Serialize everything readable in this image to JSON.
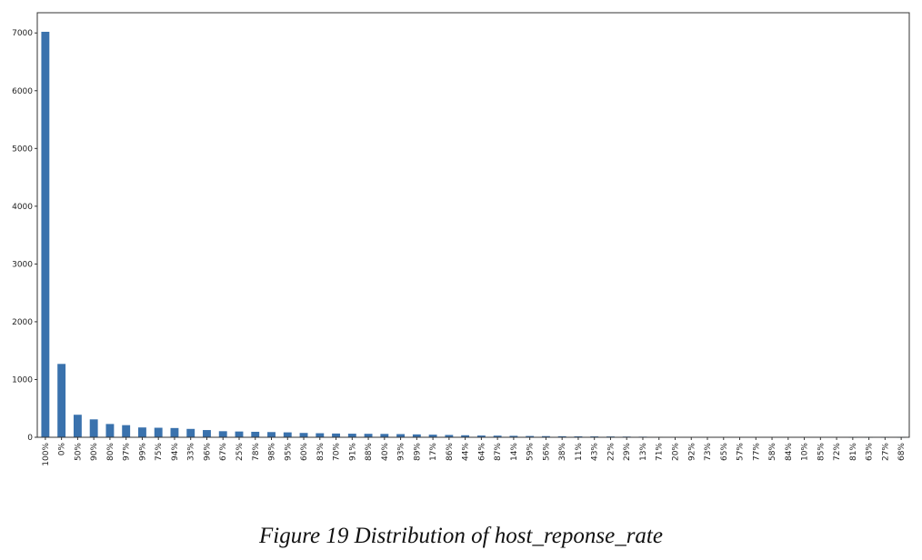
{
  "caption": "Figure 19 Distribution of host_reponse_rate",
  "chart_data": {
    "type": "bar",
    "title": "",
    "xlabel": "",
    "ylabel": "",
    "ylim": [
      0,
      7350
    ],
    "yticks": [
      0,
      1000,
      2000,
      3000,
      4000,
      5000,
      6000,
      7000
    ],
    "grid": false,
    "bar_color": "#3a72ad",
    "categories": [
      "100%",
      "0%",
      "50%",
      "90%",
      "80%",
      "97%",
      "99%",
      "75%",
      "94%",
      "33%",
      "96%",
      "67%",
      "25%",
      "78%",
      "98%",
      "95%",
      "60%",
      "83%",
      "70%",
      "91%",
      "88%",
      "40%",
      "93%",
      "89%",
      "17%",
      "86%",
      "44%",
      "64%",
      "87%",
      "14%",
      "59%",
      "56%",
      "38%",
      "11%",
      "43%",
      "22%",
      "29%",
      "13%",
      "71%",
      "20%",
      "92%",
      "73%",
      "65%",
      "57%",
      "77%",
      "58%",
      "84%",
      "10%",
      "85%",
      "72%",
      "81%",
      "63%",
      "27%",
      "68%"
    ],
    "values": [
      7020,
      1270,
      390,
      310,
      230,
      210,
      170,
      165,
      160,
      145,
      125,
      105,
      100,
      95,
      90,
      85,
      75,
      70,
      65,
      62,
      60,
      58,
      55,
      50,
      45,
      40,
      35,
      30,
      28,
      25,
      22,
      20,
      18,
      16,
      15,
      14,
      12,
      10,
      8,
      6,
      5,
      4,
      4,
      3,
      3,
      3,
      2,
      2,
      2,
      2,
      1,
      1,
      1,
      1
    ]
  }
}
